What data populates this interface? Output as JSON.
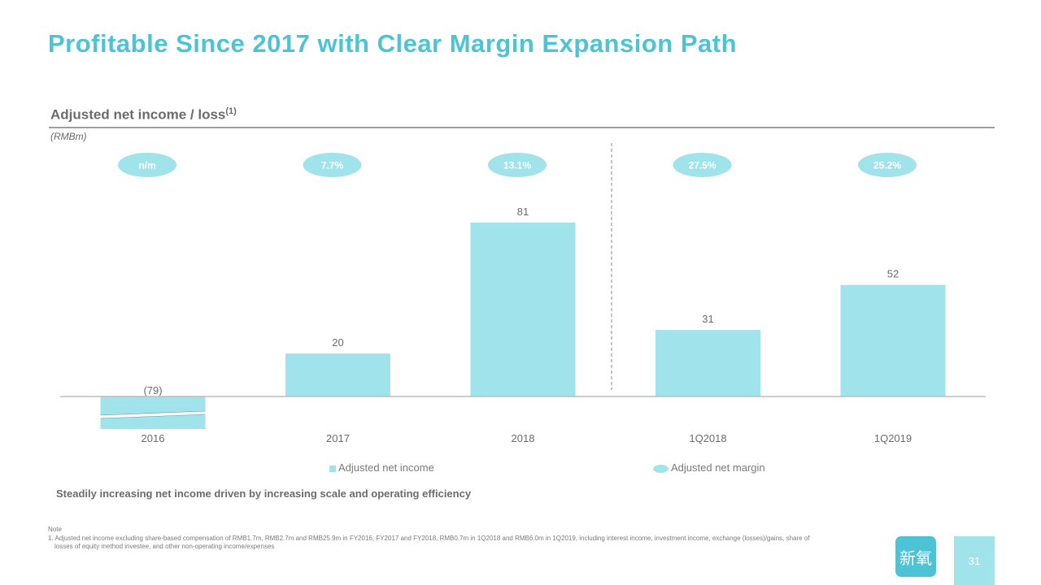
{
  "slide": {
    "title": "Profitable Since 2017 with Clear Margin Expansion Path",
    "subtitle": "Adjusted net income / loss",
    "subtitle_superscript": "(1)",
    "units": "(RMBm)",
    "takeaway": "Steadily increasing net income driven by increasing scale and operating efficiency",
    "note_label": "Note",
    "note_text": "1. Adjusted net income excluding share-based compensation of RMB1.7m, RMB2.7m and RMB25.9m in FY2016, FY2017 and FY2018, RMB0.7m in 1Q2018 and RMB6.0m in 1Q2019, including interest income, investment income, exchange (losses)/gains, share of losses of equity method investee, and other non-operating income/expenses",
    "logo_text": "新氧",
    "page_number": "31"
  },
  "colors": {
    "title": "#4dc3d6",
    "bar": "#a0e3ea",
    "margin_pill": "#a0e3ea",
    "axis": "#bdbdbd",
    "divider": "#8a8a8a",
    "text_gray": "#6b6b6b"
  },
  "chart_data": {
    "type": "bar",
    "categories": [
      "2016",
      "2017",
      "2018",
      "1Q2018",
      "1Q2019"
    ],
    "series": [
      {
        "name": "Adjusted net income",
        "values": [
          -79,
          20,
          81,
          31,
          52
        ]
      },
      {
        "name": "Adjusted net margin",
        "values": [
          null,
          7.7,
          13.1,
          27.5,
          25.2
        ]
      }
    ],
    "value_labels": [
      "(79)",
      "20",
      "81",
      "31",
      "52"
    ],
    "margin_labels": [
      "n/m",
      "7.7%",
      "13.1%",
      "27.5%",
      "25.2%"
    ],
    "ylim": [
      -79,
      81
    ],
    "axis_break_on_negative_bar": true,
    "divider_between": [
      "2018",
      "1Q2018"
    ],
    "legend": [
      "Adjusted net income",
      "Adjusted net margin"
    ],
    "legend_position": "bottom",
    "grid": false,
    "title": "Adjusted net income / loss",
    "ylabel": "(RMBm)"
  }
}
